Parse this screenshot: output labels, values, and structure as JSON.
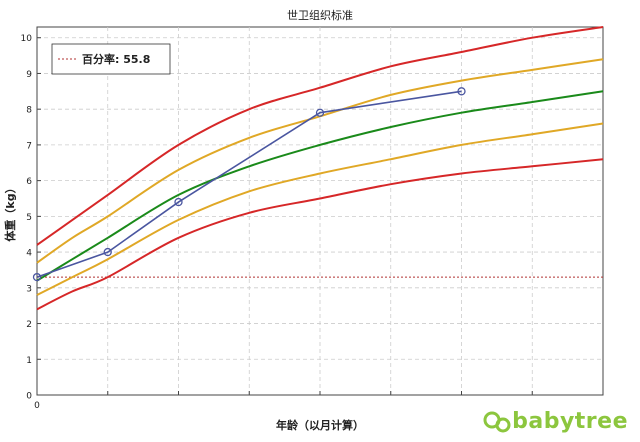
{
  "chart_data": {
    "type": "line",
    "title": "世卫组织标准",
    "xlabel": "年龄（以月计算）",
    "ylabel": "体重（kg）",
    "xlim": [
      0,
      8
    ],
    "ylim": [
      0,
      10.3
    ],
    "yticks": [
      0,
      1,
      2,
      3,
      4,
      5,
      6,
      7,
      8,
      9,
      10
    ],
    "xtick_labels": [
      {
        "x": 0,
        "label": "0"
      }
    ],
    "grid": true,
    "reference_line": {
      "y": 3.3,
      "label": "百分率: 55.8",
      "color": "#b03030"
    },
    "percentile_curves": [
      {
        "x": [
          0,
          0.5,
          1,
          2,
          3,
          4,
          5,
          6,
          7,
          8
        ],
        "values": [
          2.4,
          2.9,
          3.3,
          4.4,
          5.1,
          5.5,
          5.9,
          6.2,
          6.4,
          6.6
        ],
        "color": "#d62728"
      },
      {
        "x": [
          0,
          0.5,
          1,
          2,
          3,
          4,
          5,
          6,
          7,
          8
        ],
        "values": [
          2.8,
          3.3,
          3.8,
          4.9,
          5.7,
          6.2,
          6.6,
          7.0,
          7.3,
          7.6
        ],
        "color": "#e0a826"
      },
      {
        "x": [
          0,
          0.5,
          1,
          2,
          3,
          4,
          5,
          6,
          7,
          8
        ],
        "values": [
          3.2,
          3.8,
          4.4,
          5.6,
          6.4,
          7.0,
          7.5,
          7.9,
          8.2,
          8.5
        ],
        "color": "#1a8a1a"
      },
      {
        "x": [
          0,
          0.5,
          1,
          2,
          3,
          4,
          5,
          6,
          7,
          8
        ],
        "values": [
          3.7,
          4.4,
          5.0,
          6.3,
          7.2,
          7.8,
          8.4,
          8.8,
          9.1,
          9.4
        ],
        "color": "#e0a826"
      },
      {
        "x": [
          0,
          0.5,
          1,
          2,
          3,
          4,
          5,
          6,
          7,
          8
        ],
        "values": [
          4.2,
          4.9,
          5.6,
          7.0,
          8.0,
          8.6,
          9.2,
          9.6,
          10.0,
          10.3
        ],
        "color": "#d62728"
      }
    ],
    "series": [
      {
        "x": [
          0,
          1,
          2,
          4,
          6
        ],
        "values": [
          3.3,
          4.0,
          5.4,
          7.9,
          8.5
        ],
        "color": "#4a56a0"
      }
    ]
  },
  "brand": {
    "text": "babytree",
    "color": "#8cc63e"
  }
}
